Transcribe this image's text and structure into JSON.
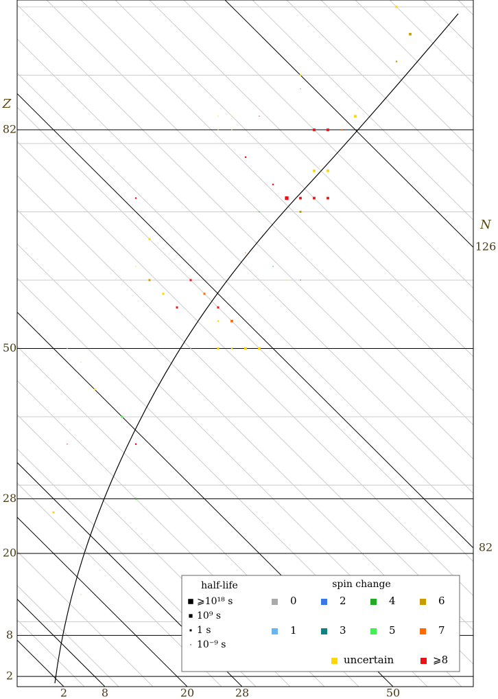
{
  "chart_data": {
    "type": "nuclide-scatter",
    "xlabel": "N",
    "ylabel": "Z",
    "ylim": [
      0.5,
      101
    ],
    "n_minus_z_lim": [
      -5.3,
      61.2
    ],
    "zticks": [
      2,
      8,
      20,
      28,
      50,
      82
    ],
    "nticks": [
      2,
      8,
      20,
      28,
      50,
      82,
      126
    ],
    "z_minor_grid": [
      10,
      30,
      40,
      60,
      70,
      80,
      90,
      100
    ],
    "n_minor_grid": [
      5,
      10,
      15,
      25,
      30,
      35,
      40,
      45,
      55,
      60,
      65,
      70,
      75,
      80,
      85,
      90,
      95,
      100,
      105,
      110,
      115,
      120,
      130,
      135,
      140,
      145,
      150,
      155,
      160
    ],
    "size_legend_title": "half-life",
    "size_legend": [
      {
        "value": 18,
        "label": "⩾10¹⁸ s"
      },
      {
        "value": 9,
        "label": "10⁹ s"
      },
      {
        "value": 0,
        "label": "1 s"
      },
      {
        "value": -9,
        "label": "10⁻⁹ s"
      }
    ],
    "color_legend_title": "spin change",
    "series": [
      {
        "name": "0",
        "color": "#aaaaaa",
        "x": [],
        "y": [],
        "half_life_log10": []
      },
      {
        "name": "1",
        "color": "#6ab4f0",
        "x": [],
        "y": [],
        "half_life_log10": []
      },
      {
        "name": "2",
        "color": "#3a78e6",
        "x": [],
        "y": [],
        "half_life_log10": []
      },
      {
        "name": "3",
        "color": "#158080",
        "x": [
          96,
          94
        ],
        "y": [
          60,
          62
        ],
        "half_life_log10": [
          -9,
          -9
        ]
      },
      {
        "name": "4",
        "color": "#22aa22",
        "x": [
          100,
          40
        ],
        "y": [
          70,
          28
        ],
        "half_life_log10": [
          -9,
          -3
        ]
      },
      {
        "name": "5",
        "color": "#44ee55",
        "x": [
          50
        ],
        "y": [
          40
        ],
        "half_life_log10": [
          0
        ]
      },
      {
        "name": "6",
        "color": "#c89c00",
        "x": [
          148,
          142,
          124,
          106,
          74
        ],
        "y": [
          96,
          92,
          88,
          70,
          60
        ],
        "half_life_log10": [
          3,
          -3,
          -9,
          0,
          0
        ]
      },
      {
        "name": "7",
        "color": "#ff6a00",
        "x": [
          80,
          80,
          92,
          124
        ],
        "y": [
          58,
          54,
          64,
          82
        ],
        "half_life_log10": [
          0,
          3,
          -9,
          -3
        ]
      },
      {
        "name": "uncertain",
        "color": "#ffd700",
        "x": [
          150,
          126,
          128,
          108,
          110,
          108,
          106,
          114,
          116,
          80,
          74,
          74,
          78,
          74,
          76,
          78,
          80,
          70,
          52,
          52,
          50,
          26,
          18,
          94
        ],
        "y": [
          100,
          90,
          84,
          84,
          84,
          82,
          82,
          76,
          76,
          66,
          62,
          58,
          54,
          50,
          50,
          50,
          50,
          50,
          50,
          48,
          44,
          26,
          14,
          60
        ],
        "half_life_log10": [
          0,
          -3,
          3,
          -9,
          -9,
          -9,
          -9,
          3,
          3,
          0,
          -9,
          0,
          -3,
          0,
          -3,
          3,
          3,
          -9,
          -9,
          -9,
          -3,
          0,
          -9,
          -9
        ]
      },
      {
        "name": "⩾8",
        "color": "#ee1111",
        "x": [
          120,
          122,
          114,
          106,
          106,
          106,
          108,
          110,
          112,
          84,
          80,
          74,
          80,
          48,
          38
        ],
        "y": [
          82,
          82,
          84,
          78,
          74,
          72,
          72,
          72,
          72,
          72,
          60,
          56,
          56,
          36,
          36
        ],
        "half_life_log10": [
          3,
          3,
          -9,
          -3,
          -3,
          9,
          3,
          3,
          3,
          -3,
          0,
          0,
          0,
          -3,
          -9
        ]
      }
    ]
  }
}
